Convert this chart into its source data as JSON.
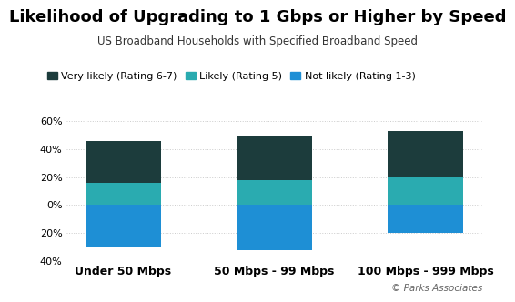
{
  "title": "Likelihood of Upgrading to 1 Gbps or Higher by Speed",
  "subtitle": "US Broadband Households with Specified Broadband Speed",
  "categories": [
    "Under 50 Mbps",
    "50 Mbps - 99 Mbps",
    "100 Mbps - 999 Mbps"
  ],
  "series": {
    "very_likely": [
      30,
      32,
      33
    ],
    "likely": [
      16,
      18,
      20
    ],
    "not_likely": [
      -30,
      -32,
      -20
    ]
  },
  "colors": {
    "very_likely": "#1c3c3c",
    "likely": "#2aabb0",
    "not_likely": "#1e8fd5"
  },
  "legend_labels": [
    "Very likely (Rating 6-7)",
    "Likely (Rating 5)",
    "Not likely (Rating 1-3)"
  ],
  "ylim": [
    -40,
    60
  ],
  "yticks": [
    -40,
    -20,
    0,
    20,
    40,
    60
  ],
  "ytick_labels": [
    "40%",
    "20%",
    "0%",
    "20%",
    "40%",
    "60%"
  ],
  "watermark": "© Parks Associates",
  "background_color": "#ffffff",
  "grid_color": "#cccccc",
  "title_fontsize": 13,
  "subtitle_fontsize": 8.5,
  "tick_fontsize": 8,
  "legend_fontsize": 8
}
